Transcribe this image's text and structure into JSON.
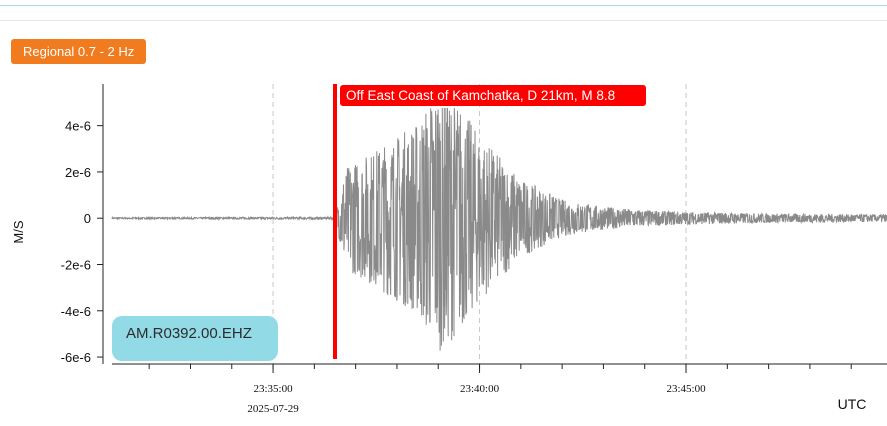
{
  "filter_label": "Regional 0.7 - 2 Hz",
  "station": "AM.R0392.00.EHZ",
  "chart_data": {
    "type": "line",
    "ylabel": "M/S",
    "xunit_label": "UTC",
    "xlim": [
      "23:31:06",
      "23:49:52"
    ],
    "ylim": [
      -6.3e-06,
      5.8e-06
    ],
    "y_ticks": [
      {
        "value": 4e-06,
        "label": "4e-6"
      },
      {
        "value": 2e-06,
        "label": "2e-6"
      },
      {
        "value": 0,
        "label": "0"
      },
      {
        "value": -2e-06,
        "label": "-2e-6"
      },
      {
        "value": -4e-06,
        "label": "-4e-6"
      },
      {
        "value": -6e-06,
        "label": "-6e-6"
      }
    ],
    "x_ticks": [
      {
        "time": "23:35:00",
        "label": "23:35:00",
        "date": "2025-07-29"
      },
      {
        "time": "23:40:00",
        "label": "23:40:00",
        "date": ""
      },
      {
        "time": "23:45:00",
        "label": "23:45:00",
        "date": ""
      }
    ],
    "minor_tick_interval_s": 60,
    "grid": "vertical dashed at major ticks",
    "series": [
      {
        "color": "#8a8a8a",
        "envelope": [
          {
            "t": "23:31:06",
            "amp": 3e-08
          },
          {
            "t": "23:36:30",
            "amp": 5e-08
          },
          {
            "t": "23:36:45",
            "amp": 2.2e-06
          },
          {
            "t": "23:37:30",
            "amp": 3e-06
          },
          {
            "t": "23:38:30",
            "amp": 4.2e-06
          },
          {
            "t": "23:39:00",
            "amp": 5.8e-06
          },
          {
            "t": "23:39:30",
            "amp": 5e-06
          },
          {
            "t": "23:40:00",
            "amp": 3.6e-06
          },
          {
            "t": "23:41:00",
            "amp": 1.7e-06
          },
          {
            "t": "23:42:00",
            "amp": 8e-07
          },
          {
            "t": "23:43:00",
            "amp": 5e-07
          },
          {
            "t": "23:44:00",
            "amp": 3.5e-07
          },
          {
            "t": "23:45:00",
            "amp": 2.8e-07
          },
          {
            "t": "23:47:00",
            "amp": 2e-07
          },
          {
            "t": "23:49:52",
            "amp": 1.6e-07
          }
        ]
      }
    ],
    "events": [
      {
        "time": "23:36:30",
        "label": "Off East Coast of Kamchatka, D 21km, M 8.8",
        "color": "#ff0000"
      }
    ]
  }
}
